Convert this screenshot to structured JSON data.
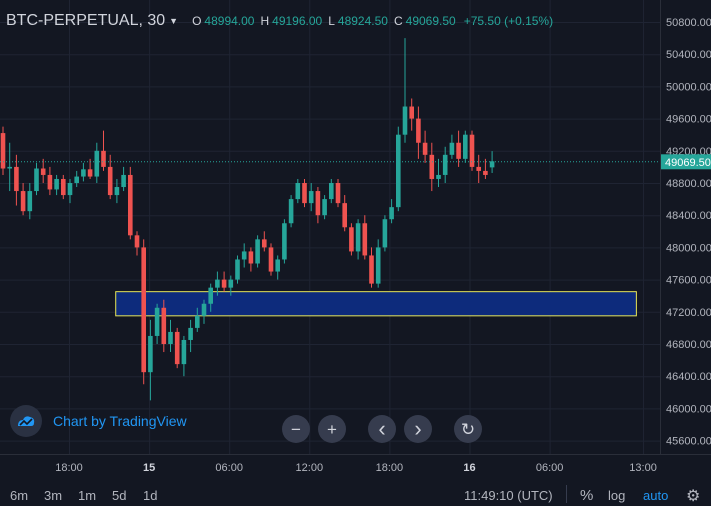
{
  "header": {
    "symbol": "BTC-PERPETUAL, 30",
    "ohlc": [
      {
        "key": "O",
        "value": "48994.00"
      },
      {
        "key": "H",
        "value": "49196.00"
      },
      {
        "key": "L",
        "value": "48924.50"
      },
      {
        "key": "C",
        "value": "49069.50"
      }
    ],
    "change": "+75.50 (+0.15%)"
  },
  "branding": "Chart by TradingView",
  "nav": {
    "zoom_out": "−",
    "zoom_in": "+",
    "scroll_left": "‹",
    "scroll_right": "›",
    "reset": "↻"
  },
  "footer": {
    "ranges": [
      "6m",
      "3m",
      "1m",
      "5d",
      "1d"
    ],
    "clock": "11:49:10 (UTC)",
    "options": [
      "%",
      "log",
      "auto"
    ],
    "settings_icon": "gear-icon"
  },
  "colors": {
    "up": "#26a69a",
    "down": "#ef5350",
    "zone_fill": "#0d2b7c",
    "zone_border": "#e6e65a",
    "accent": "#2196f3"
  },
  "chart_data": {
    "type": "candlestick",
    "symbol": "BTC-PERPETUAL",
    "interval": "30",
    "last_price": 49069.5,
    "last_price_label": "49069.50",
    "y_ticks": [
      50800,
      50400,
      50000,
      49600,
      49200,
      48800,
      48400,
      48000,
      47600,
      47200,
      46800,
      46400,
      46000,
      45600
    ],
    "y_tick_labels": [
      "50800.00",
      "50400.00",
      "50000.00",
      "49600.00",
      "49200.00",
      "48800.00",
      "48400.00",
      "48000.00",
      "47600.00",
      "47200.00",
      "46800.00",
      "46400.00",
      "46000.00",
      "45600.00"
    ],
    "x_ticks": [
      {
        "label": "18:00",
        "bold": false,
        "hours": 18
      },
      {
        "label": "15",
        "bold": true,
        "hours": 24
      },
      {
        "label": "06:00",
        "bold": false,
        "hours": 30
      },
      {
        "label": "12:00",
        "bold": false,
        "hours": 36
      },
      {
        "label": "18:00",
        "bold": false,
        "hours": 42
      },
      {
        "label": "16",
        "bold": true,
        "hours": 48
      },
      {
        "label": "06:00",
        "bold": false,
        "hours": 54
      },
      {
        "label": "13:00",
        "bold": false,
        "hours": 61
      }
    ],
    "zone": {
      "low": 47150,
      "high": 47450,
      "from_hours": 21.5,
      "to_hours": 60.5
    },
    "candles": [
      [
        49420,
        49500,
        48900,
        48980
      ],
      [
        48980,
        49300,
        48700,
        49000
      ],
      [
        49000,
        49150,
        48520,
        48700
      ],
      [
        48700,
        48800,
        48400,
        48450
      ],
      [
        48450,
        48800,
        48350,
        48700
      ],
      [
        48700,
        49050,
        48650,
        48980
      ],
      [
        48980,
        49100,
        48800,
        48900
      ],
      [
        48900,
        49000,
        48650,
        48720
      ],
      [
        48720,
        48900,
        48650,
        48850
      ],
      [
        48850,
        48900,
        48600,
        48650
      ],
      [
        48650,
        48850,
        48550,
        48800
      ],
      [
        48800,
        48950,
        48750,
        48880
      ],
      [
        48880,
        49050,
        48820,
        48970
      ],
      [
        48970,
        49100,
        48850,
        48880
      ],
      [
        48880,
        49300,
        48800,
        49200
      ],
      [
        49200,
        49450,
        48950,
        49000
      ],
      [
        49000,
        49150,
        48600,
        48650
      ],
      [
        48650,
        48850,
        48550,
        48750
      ],
      [
        48750,
        49000,
        48700,
        48900
      ],
      [
        48900,
        49000,
        48100,
        48150
      ],
      [
        48150,
        48200,
        47900,
        48000
      ],
      [
        48000,
        48100,
        46300,
        46450
      ],
      [
        46450,
        47100,
        46100,
        46900
      ],
      [
        46900,
        47300,
        46800,
        47250
      ],
      [
        47250,
        47350,
        46700,
        46800
      ],
      [
        46800,
        47100,
        46700,
        46950
      ],
      [
        46950,
        47000,
        46500,
        46550
      ],
      [
        46550,
        46900,
        46400,
        46850
      ],
      [
        46850,
        47100,
        46700,
        47000
      ],
      [
        47000,
        47250,
        46950,
        47150
      ],
      [
        47150,
        47350,
        47050,
        47300
      ],
      [
        47300,
        47550,
        47200,
        47500
      ],
      [
        47500,
        47700,
        47400,
        47600
      ],
      [
        47600,
        47700,
        47450,
        47500
      ],
      [
        47500,
        47650,
        47400,
        47600
      ],
      [
        47600,
        47900,
        47550,
        47850
      ],
      [
        47850,
        48050,
        47750,
        47950
      ],
      [
        47950,
        48000,
        47700,
        47800
      ],
      [
        47800,
        48150,
        47750,
        48100
      ],
      [
        48100,
        48200,
        47950,
        48000
      ],
      [
        48000,
        48050,
        47650,
        47700
      ],
      [
        47700,
        47900,
        47600,
        47850
      ],
      [
        47850,
        48350,
        47800,
        48300
      ],
      [
        48300,
        48650,
        48250,
        48600
      ],
      [
        48600,
        48850,
        48550,
        48800
      ],
      [
        48800,
        48850,
        48500,
        48550
      ],
      [
        48550,
        48800,
        48450,
        48700
      ],
      [
        48700,
        48750,
        48300,
        48400
      ],
      [
        48400,
        48650,
        48350,
        48600
      ],
      [
        48600,
        48850,
        48550,
        48800
      ],
      [
        48800,
        48850,
        48500,
        48550
      ],
      [
        48550,
        48650,
        48200,
        48250
      ],
      [
        48250,
        48300,
        47900,
        47950
      ],
      [
        47950,
        48350,
        47850,
        48300
      ],
      [
        48300,
        48400,
        47850,
        47900
      ],
      [
        47900,
        48000,
        47500,
        47550
      ],
      [
        47550,
        48100,
        47500,
        48000
      ],
      [
        48000,
        48400,
        47950,
        48350
      ],
      [
        48350,
        48600,
        48300,
        48500
      ],
      [
        48500,
        49500,
        48450,
        49400
      ],
      [
        49400,
        50600,
        49300,
        49750
      ],
      [
        49750,
        49850,
        49450,
        49600
      ],
      [
        49600,
        49750,
        49100,
        49300
      ],
      [
        49300,
        49450,
        49050,
        49150
      ],
      [
        49150,
        49300,
        48700,
        48850
      ],
      [
        48850,
        49100,
        48750,
        48900
      ],
      [
        48900,
        49250,
        48800,
        49150
      ],
      [
        49150,
        49400,
        49100,
        49300
      ],
      [
        49300,
        49450,
        49000,
        49100
      ],
      [
        49100,
        49450,
        49050,
        49400
      ],
      [
        49400,
        49450,
        48950,
        49000
      ],
      [
        49000,
        49150,
        48800,
        48950
      ],
      [
        48950,
        49100,
        48850,
        48900
      ],
      [
        48994,
        49196,
        48924.5,
        49069.5
      ]
    ]
  }
}
